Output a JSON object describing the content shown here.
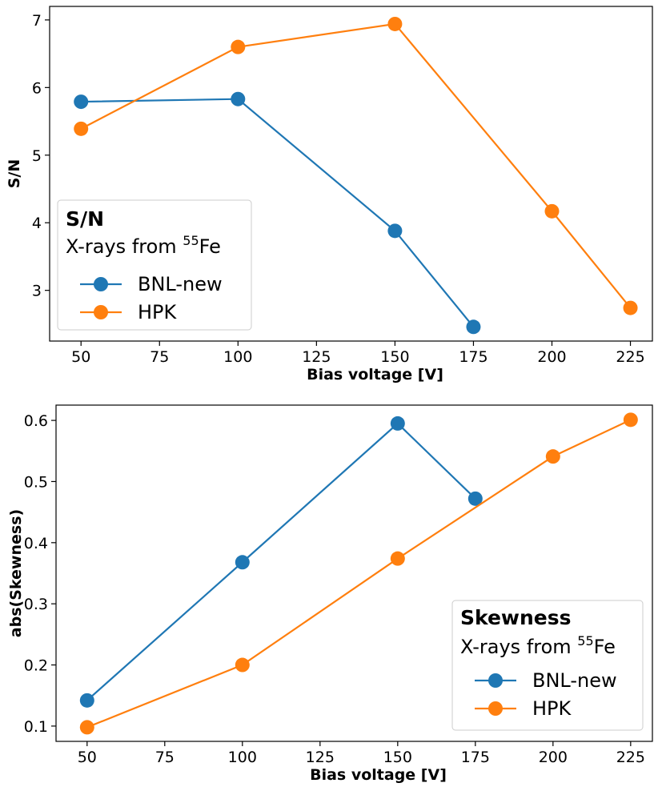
{
  "colors": {
    "BNL-new": "#1f77b4",
    "HPK": "#ff7f0e",
    "axes": "#000000",
    "legend_border": "#cccccc"
  },
  "chart_data": [
    {
      "type": "line",
      "xlabel": "Bias voltage [V]",
      "ylabel": "S/N",
      "xlim": [
        40,
        232
      ],
      "ylim": [
        2.25,
        7.2
      ],
      "xticks": [
        50,
        75,
        100,
        125,
        150,
        175,
        200,
        225
      ],
      "yticks": [
        3,
        4,
        5,
        6,
        7
      ],
      "legend": {
        "title": "S/N",
        "subtitle_prefix": "X-rays from ",
        "subtitle_sup": "55",
        "subtitle_suffix": "Fe",
        "placement": "lower-left"
      },
      "series": [
        {
          "name": "BNL-new",
          "x": [
            50,
            100,
            150,
            175
          ],
          "y": [
            5.79,
            5.83,
            3.88,
            2.46
          ]
        },
        {
          "name": "HPK",
          "x": [
            50,
            100,
            150,
            200,
            225
          ],
          "y": [
            5.39,
            6.6,
            6.94,
            4.17,
            2.74
          ]
        }
      ]
    },
    {
      "type": "line",
      "xlabel": "Bias voltage [V]",
      "ylabel": "abs(Skewness)",
      "xlim": [
        40,
        232
      ],
      "ylim": [
        0.075,
        0.625
      ],
      "xticks": [
        50,
        75,
        100,
        125,
        150,
        175,
        200,
        225
      ],
      "yticks": [
        0.1,
        0.2,
        0.3,
        0.4,
        0.5,
        0.6
      ],
      "legend": {
        "title": "Skewness",
        "subtitle_prefix": "X-rays from ",
        "subtitle_sup": "55",
        "subtitle_suffix": "Fe",
        "placement": "lower-right"
      },
      "series": [
        {
          "name": "BNL-new",
          "x": [
            50,
            100,
            150,
            175
          ],
          "y": [
            0.142,
            0.368,
            0.595,
            0.472
          ]
        },
        {
          "name": "HPK",
          "x": [
            50,
            100,
            150,
            200,
            225
          ],
          "y": [
            0.098,
            0.2,
            0.374,
            0.541,
            0.601
          ]
        }
      ]
    }
  ]
}
